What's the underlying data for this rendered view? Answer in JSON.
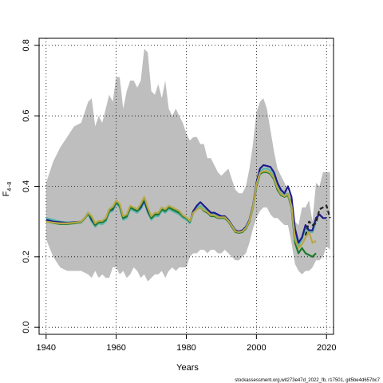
{
  "chart_data": {
    "type": "line",
    "xlabel": "Years",
    "ylabel": "F",
    "ylabel_sub": "4−8",
    "xlim": [
      1938,
      2022
    ],
    "ylim": [
      -0.02,
      0.82
    ],
    "xticks": [
      1940,
      1960,
      1980,
      2000,
      2020
    ],
    "yticks": [
      0.0,
      0.2,
      0.4,
      0.6,
      0.8
    ],
    "ytick_labels": [
      "0.0",
      "0.2",
      "0.4",
      "0.6",
      "0.8"
    ],
    "grid": true,
    "footer": "stockassessment.org,wit273e47d_2022_fb, r17501, git5be4d657bc7",
    "colors": {
      "band": "#bebebe",
      "frame": "#000000",
      "grid": "#000000"
    },
    "band": {
      "x": [
        1940,
        1942,
        1944,
        1946,
        1948,
        1950,
        1952,
        1953,
        1954,
        1955,
        1956,
        1957,
        1958,
        1959,
        1960,
        1961,
        1962,
        1963,
        1964,
        1965,
        1966,
        1967,
        1968,
        1969,
        1970,
        1971,
        1972,
        1973,
        1974,
        1975,
        1976,
        1977,
        1978,
        1979,
        1980,
        1981,
        1982,
        1983,
        1984,
        1985,
        1986,
        1987,
        1988,
        1989,
        1990,
        1991,
        1992,
        1993,
        1994,
        1995,
        1996,
        1997,
        1998,
        1999,
        2000,
        2001,
        2002,
        2003,
        2004,
        2005,
        2006,
        2007,
        2008,
        2009,
        2010,
        2011,
        2012,
        2013,
        2014,
        2015,
        2016,
        2017,
        2018,
        2019,
        2020,
        2021
      ],
      "upper": [
        0.41,
        0.47,
        0.51,
        0.54,
        0.57,
        0.58,
        0.64,
        0.65,
        0.57,
        0.6,
        0.58,
        0.62,
        0.66,
        0.64,
        0.71,
        0.71,
        0.62,
        0.67,
        0.7,
        0.7,
        0.68,
        0.7,
        0.79,
        0.78,
        0.67,
        0.66,
        0.69,
        0.65,
        0.7,
        0.62,
        0.6,
        0.62,
        0.6,
        0.58,
        0.55,
        0.53,
        0.54,
        0.54,
        0.52,
        0.52,
        0.48,
        0.48,
        0.46,
        0.44,
        0.43,
        0.44,
        0.45,
        0.42,
        0.39,
        0.38,
        0.38,
        0.4,
        0.45,
        0.52,
        0.61,
        0.64,
        0.65,
        0.62,
        0.56,
        0.5,
        0.45,
        0.43,
        0.41,
        0.39,
        0.33,
        0.3,
        0.29,
        0.34,
        0.34,
        0.36,
        0.3,
        0.41,
        0.4,
        0.44,
        0.44,
        0.44
      ],
      "lower": [
        0.25,
        0.2,
        0.17,
        0.16,
        0.16,
        0.16,
        0.15,
        0.14,
        0.16,
        0.14,
        0.15,
        0.14,
        0.14,
        0.17,
        0.17,
        0.15,
        0.16,
        0.14,
        0.15,
        0.17,
        0.16,
        0.14,
        0.15,
        0.13,
        0.14,
        0.15,
        0.15,
        0.16,
        0.14,
        0.16,
        0.17,
        0.16,
        0.17,
        0.17,
        0.17,
        0.2,
        0.21,
        0.21,
        0.22,
        0.22,
        0.21,
        0.22,
        0.22,
        0.21,
        0.21,
        0.22,
        0.21,
        0.2,
        0.19,
        0.19,
        0.2,
        0.21,
        0.24,
        0.28,
        0.31,
        0.33,
        0.34,
        0.34,
        0.32,
        0.31,
        0.31,
        0.3,
        0.29,
        0.29,
        0.24,
        0.18,
        0.16,
        0.15,
        0.16,
        0.16,
        0.17,
        0.19,
        0.19,
        0.2,
        0.23,
        0.22
      ]
    },
    "series": [
      {
        "color": "#5ab4ac",
        "x": [
          1940,
          1942,
          1944,
          1946,
          1948,
          1950,
          1951,
          1952,
          1953,
          1954,
          1955,
          1956,
          1957,
          1958,
          1959,
          1960,
          1961,
          1962,
          1963,
          1964,
          1965,
          1966,
          1967,
          1968,
          1969,
          1970,
          1971,
          1972,
          1973,
          1974,
          1975,
          1976,
          1977,
          1978,
          1979,
          1980,
          1981,
          1982,
          1983,
          1984,
          1985,
          1986,
          1987,
          1988,
          1989,
          1990,
          1991,
          1992,
          1993,
          1994,
          1995,
          1996,
          1997,
          1998,
          1999,
          2000,
          2001,
          2002,
          2003,
          2004,
          2005,
          2006,
          2007,
          2008,
          2009,
          2010,
          2011,
          2012,
          2013,
          2014,
          2015,
          2016,
          2017
        ],
        "y": [
          0.31,
          0.305,
          0.3,
          0.298,
          0.298,
          0.3,
          0.31,
          0.32,
          0.3,
          0.285,
          0.295,
          0.292,
          0.3,
          0.325,
          0.33,
          0.35,
          0.34,
          0.305,
          0.31,
          0.335,
          0.33,
          0.325,
          0.335,
          0.355,
          0.325,
          0.305,
          0.315,
          0.315,
          0.33,
          0.325,
          0.335,
          0.33,
          0.325,
          0.32,
          0.31,
          0.305,
          0.295,
          0.325,
          0.34,
          0.345,
          0.335,
          0.33,
          0.32,
          0.32,
          0.315,
          0.31,
          0.31,
          0.3,
          0.285,
          0.272,
          0.27,
          0.272,
          0.28,
          0.3,
          0.34,
          0.4,
          0.44,
          0.45,
          0.45,
          0.445,
          0.43,
          0.4,
          0.38,
          0.375,
          0.38,
          0.35,
          0.26,
          0.23,
          0.25,
          0.28,
          0.27,
          0.27,
          0.3
        ]
      },
      {
        "color": "#1c1c8c",
        "x": [
          1940,
          1942,
          1944,
          1946,
          1948,
          1950,
          1951,
          1952,
          1953,
          1954,
          1955,
          1956,
          1957,
          1958,
          1959,
          1960,
          1961,
          1962,
          1963,
          1964,
          1965,
          1966,
          1967,
          1968,
          1969,
          1970,
          1971,
          1972,
          1973,
          1974,
          1975,
          1976,
          1977,
          1978,
          1979,
          1980,
          1981,
          1982,
          1983,
          1984,
          1985,
          1986,
          1987,
          1988,
          1989,
          1990,
          1991,
          1992,
          1993,
          1994,
          1995,
          1996,
          1997,
          1998,
          1999,
          2000,
          2001,
          2002,
          2003,
          2004,
          2005,
          2006,
          2007,
          2008,
          2009,
          2010,
          2011,
          2012,
          2013,
          2014,
          2015,
          2016,
          2017,
          2018,
          2019,
          2020
        ],
        "y": [
          0.305,
          0.3,
          0.298,
          0.296,
          0.298,
          0.3,
          0.31,
          0.325,
          0.305,
          0.29,
          0.3,
          0.298,
          0.305,
          0.33,
          0.335,
          0.355,
          0.345,
          0.31,
          0.315,
          0.34,
          0.335,
          0.33,
          0.34,
          0.36,
          0.33,
          0.31,
          0.32,
          0.32,
          0.335,
          0.33,
          0.34,
          0.335,
          0.33,
          0.325,
          0.315,
          0.31,
          0.3,
          0.33,
          0.345,
          0.355,
          0.345,
          0.335,
          0.325,
          0.325,
          0.32,
          0.315,
          0.315,
          0.305,
          0.29,
          0.275,
          0.272,
          0.275,
          0.285,
          0.305,
          0.345,
          0.41,
          0.45,
          0.46,
          0.458,
          0.455,
          0.44,
          0.41,
          0.39,
          0.38,
          0.4,
          0.37,
          0.28,
          0.24,
          0.255,
          0.29,
          0.275,
          0.275,
          0.31,
          0.32,
          0.31,
          0.31
        ]
      },
      {
        "color": "#222222",
        "dash": "5,3",
        "x": [
          2014,
          2015,
          2016,
          2017,
          2018,
          2019,
          2020,
          2021
        ],
        "y": [
          0.26,
          0.3,
          0.29,
          0.295,
          0.335,
          0.34,
          0.345,
          0.31
        ]
      },
      {
        "color": "#1a7a2a",
        "x": [
          1940,
          1942,
          1944,
          1946,
          1948,
          1950,
          1951,
          1952,
          1953,
          1954,
          1955,
          1956,
          1957,
          1958,
          1959,
          1960,
          1961,
          1962,
          1963,
          1964,
          1965,
          1966,
          1967,
          1968,
          1969,
          1970,
          1971,
          1972,
          1973,
          1974,
          1975,
          1976,
          1977,
          1978,
          1979,
          1980,
          1981,
          1982,
          1983,
          1984,
          1985,
          1986,
          1987,
          1988,
          1989,
          1990,
          1991,
          1992,
          1993,
          1994,
          1995,
          1996,
          1997,
          1998,
          1999,
          2000,
          2001,
          2002,
          2003,
          2004,
          2005,
          2006,
          2007,
          2008,
          2009,
          2010,
          2011,
          2012,
          2013,
          2014,
          2015,
          2016,
          2017
        ],
        "y": [
          0.3,
          0.296,
          0.293,
          0.293,
          0.295,
          0.298,
          0.308,
          0.322,
          0.31,
          0.29,
          0.298,
          0.298,
          0.305,
          0.33,
          0.338,
          0.355,
          0.345,
          0.31,
          0.315,
          0.34,
          0.335,
          0.33,
          0.345,
          0.365,
          0.335,
          0.31,
          0.32,
          0.32,
          0.335,
          0.33,
          0.34,
          0.335,
          0.33,
          0.325,
          0.315,
          0.31,
          0.3,
          0.325,
          0.335,
          0.34,
          0.33,
          0.325,
          0.315,
          0.315,
          0.31,
          0.31,
          0.31,
          0.3,
          0.285,
          0.27,
          0.268,
          0.27,
          0.28,
          0.3,
          0.34,
          0.4,
          0.435,
          0.44,
          0.44,
          0.435,
          0.42,
          0.39,
          0.375,
          0.37,
          0.375,
          0.34,
          0.24,
          0.21,
          0.225,
          0.21,
          0.205,
          0.2,
          0.21
        ]
      },
      {
        "color": "#b8a848",
        "x": [
          1940,
          1942,
          1944,
          1946,
          1948,
          1950,
          1951,
          1952,
          1953,
          1954,
          1955,
          1956,
          1957,
          1958,
          1959,
          1960,
          1961,
          1962,
          1963,
          1964,
          1965,
          1966,
          1967,
          1968,
          1969,
          1970,
          1971,
          1972,
          1973,
          1974,
          1975,
          1976,
          1977,
          1978,
          1979,
          1980,
          1981,
          1982,
          1983,
          1984,
          1985,
          1986,
          1987,
          1988,
          1989,
          1990,
          1991,
          1992,
          1993,
          1994,
          1995,
          1996,
          1997,
          1998,
          1999,
          2000,
          2001,
          2002,
          2003,
          2004,
          2005,
          2006,
          2007,
          2008,
          2009,
          2010,
          2011,
          2012,
          2013,
          2014,
          2015,
          2016,
          2017
        ],
        "y": [
          0.3,
          0.297,
          0.295,
          0.295,
          0.297,
          0.3,
          0.31,
          0.325,
          0.315,
          0.295,
          0.302,
          0.302,
          0.31,
          0.335,
          0.342,
          0.36,
          0.35,
          0.315,
          0.32,
          0.345,
          0.34,
          0.335,
          0.35,
          0.37,
          0.34,
          0.315,
          0.325,
          0.325,
          0.34,
          0.335,
          0.345,
          0.34,
          0.335,
          0.33,
          0.318,
          0.312,
          0.302,
          0.325,
          0.335,
          0.34,
          0.332,
          0.328,
          0.318,
          0.318,
          0.312,
          0.312,
          0.312,
          0.302,
          0.288,
          0.272,
          0.27,
          0.272,
          0.282,
          0.302,
          0.342,
          0.405,
          0.438,
          0.443,
          0.443,
          0.438,
          0.424,
          0.395,
          0.378,
          0.372,
          0.378,
          0.345,
          0.25,
          0.225,
          0.235,
          0.255,
          0.27,
          0.24,
          0.245
        ]
      }
    ]
  }
}
